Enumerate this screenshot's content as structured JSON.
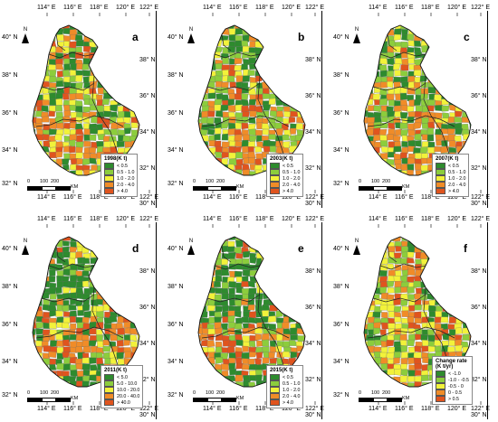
{
  "panels": [
    {
      "letter": "a",
      "legend_title": "1998(K t)",
      "legend_items": [
        "< 0.5",
        "0.5 - 1.0",
        "1.0 - 2.0",
        "2.0 - 4.0",
        "> 4.0"
      ],
      "legend_colors": [
        "#2e8b2e",
        "#8ccd3c",
        "#f2f23a",
        "#f08c28",
        "#e0541e"
      ],
      "lon_ticks": [
        "114° E",
        "116° E",
        "118° E",
        "120° E",
        "122° E"
      ],
      "lat_left": [
        "40° N",
        "38° N",
        "36° N",
        "34° N",
        "32° N"
      ],
      "lat_right": [
        "38° N",
        "36° N",
        "34° N",
        "32° N",
        "30° N"
      ],
      "north": "N",
      "scale_labels": [
        "0",
        "100",
        "200"
      ],
      "scale_unit": "KM",
      "mix": [
        0.33,
        0.25,
        0.22,
        0.13,
        0.07
      ]
    },
    {
      "letter": "b",
      "legend_title": "2003(K t)",
      "legend_items": [
        "< 0.5",
        "0.5 - 1.0",
        "1.0 - 2.0",
        "2.0 - 4.0",
        "> 4.0"
      ],
      "legend_colors": [
        "#2e8b2e",
        "#8ccd3c",
        "#f2f23a",
        "#f08c28",
        "#e0541e"
      ],
      "lon_ticks": [
        "114° E",
        "116° E",
        "118° E",
        "120° E",
        "122° E"
      ],
      "lat_left": [
        "40° N",
        "38° N",
        "36° N",
        "34° N",
        "32° N"
      ],
      "lat_right": [
        "38° N",
        "36° N",
        "34° N",
        "32° N",
        "30° N"
      ],
      "north": "N",
      "scale_labels": [
        "0",
        "100",
        "200"
      ],
      "scale_unit": "KM",
      "mix": [
        0.35,
        0.25,
        0.21,
        0.12,
        0.07
      ]
    },
    {
      "letter": "c",
      "legend_title": "2007(K t)",
      "legend_items": [
        "< 0.5",
        "0.5 - 1.0",
        "1.0 - 2.0",
        "2.0 - 4.0",
        "> 4.0"
      ],
      "legend_colors": [
        "#2e8b2e",
        "#8ccd3c",
        "#f2f23a",
        "#f08c28",
        "#e0541e"
      ],
      "lon_ticks": [
        "114° E",
        "116° E",
        "118° E",
        "120° E",
        "122° E"
      ],
      "lat_left": [
        "40° N",
        "38° N",
        "36° N",
        "34° N",
        "32° N"
      ],
      "lat_right": [
        "38° N",
        "36° N",
        "34° N",
        "32° N",
        "30° N"
      ],
      "north": "N",
      "scale_labels": [
        "0",
        "100",
        "200"
      ],
      "scale_unit": "KM",
      "mix": [
        0.36,
        0.24,
        0.2,
        0.13,
        0.07
      ]
    },
    {
      "letter": "d",
      "legend_title": "2011(K t)",
      "legend_items": [
        "< 5.0",
        "5.0 - 10.0",
        "10.0 - 20.0",
        "20.0 - 40.0",
        "> 40.0"
      ],
      "legend_colors": [
        "#2e8b2e",
        "#8ccd3c",
        "#f2f23a",
        "#f08c28",
        "#e0541e"
      ],
      "lon_ticks": [
        "114° E",
        "116° E",
        "118° E",
        "120° E",
        "122° E"
      ],
      "lat_left": [
        "40° N",
        "38° N",
        "36° N",
        "34° N",
        "32° N"
      ],
      "lat_right": [
        "38° N",
        "36° N",
        "34° N",
        "32° N",
        "30° N"
      ],
      "north": "N",
      "scale_labels": [
        "0",
        "100",
        "200"
      ],
      "scale_unit": "KM",
      "mix": [
        0.55,
        0.17,
        0.13,
        0.1,
        0.05
      ]
    },
    {
      "letter": "e",
      "legend_title": "2015(K t)",
      "legend_items": [
        "< 0.5",
        "0.5 - 1.0",
        "1.0 - 2.0",
        "2.0 - 4.0",
        "> 4.0"
      ],
      "legend_colors": [
        "#2e8b2e",
        "#8ccd3c",
        "#f2f23a",
        "#f08c28",
        "#e0541e"
      ],
      "lon_ticks": [
        "114° E",
        "116° E",
        "118° E",
        "120° E",
        "122° E"
      ],
      "lat_left": [
        "40° N",
        "38° N",
        "36° N",
        "34° N",
        "32° N"
      ],
      "lat_right": [
        "38° N",
        "36° N",
        "34° N",
        "32° N",
        "30° N"
      ],
      "north": "N",
      "scale_labels": [
        "0",
        "100",
        "200"
      ],
      "scale_unit": "KM",
      "mix": [
        0.55,
        0.17,
        0.13,
        0.1,
        0.05
      ]
    },
    {
      "letter": "f",
      "legend_title": "Change rate\n(K t/yr)",
      "legend_items": [
        "< -1.0",
        "-1.0 - -0.5",
        "-0.5 - 0",
        "0 - 0.5",
        "> 0.5"
      ],
      "legend_colors": [
        "#2e8b2e",
        "#8ccd3c",
        "#f2f23a",
        "#f08c28",
        "#e0541e"
      ],
      "lon_ticks": [
        "114° E",
        "116° E",
        "118° E",
        "120° E",
        "122° E"
      ],
      "lat_left": [
        "40° N",
        "38° N",
        "36° N",
        "34° N",
        "32° N"
      ],
      "lat_right": [
        "38° N",
        "36° N",
        "34° N",
        "32° N",
        "30° N"
      ],
      "north": "N",
      "scale_labels": [
        "0",
        "100",
        "200"
      ],
      "scale_unit": "KM",
      "mix": [
        0.18,
        0.2,
        0.3,
        0.2,
        0.12
      ]
    }
  ]
}
